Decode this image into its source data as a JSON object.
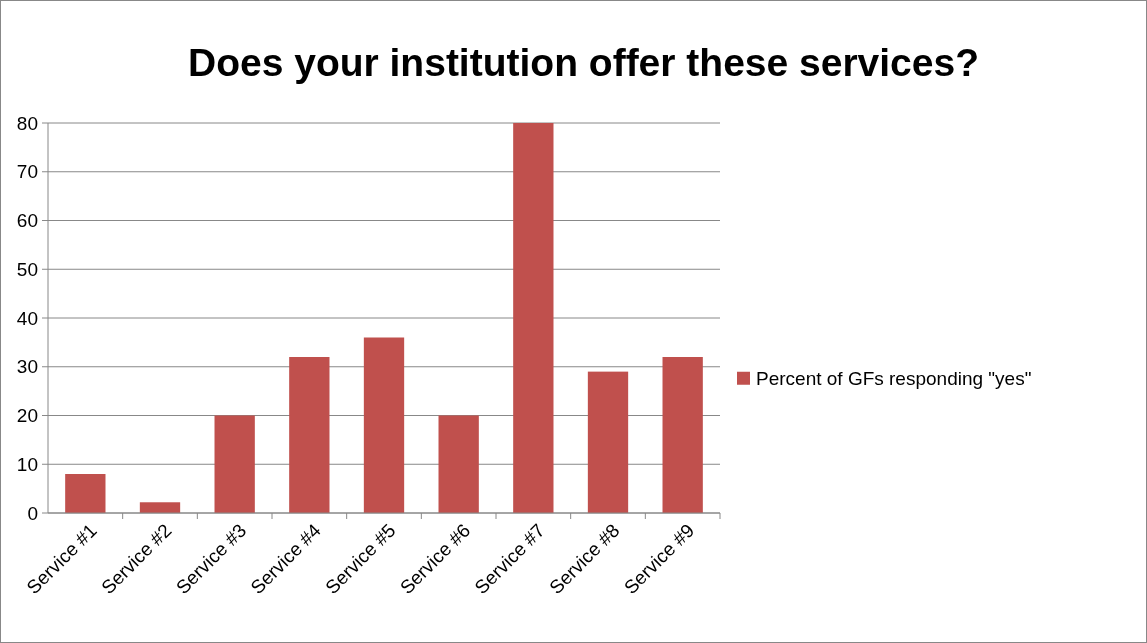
{
  "chart_data": {
    "type": "bar",
    "title": "Does your institution offer these services?",
    "categories": [
      "Service #1",
      "Service #2",
      "Service #3",
      "Service #4",
      "Service #5",
      "Service #6",
      "Service #7",
      "Service #8",
      "Service #9"
    ],
    "series": [
      {
        "name": "Percent of GFs responding \"yes\"",
        "color": "#c0504d",
        "values": [
          8,
          2.2,
          20,
          32,
          36,
          20,
          80,
          29,
          32
        ]
      }
    ],
    "ylim": [
      0,
      80
    ],
    "yticks": [
      0,
      10,
      20,
      30,
      40,
      50,
      60,
      70,
      80
    ],
    "grid": "y",
    "legend": "right"
  }
}
